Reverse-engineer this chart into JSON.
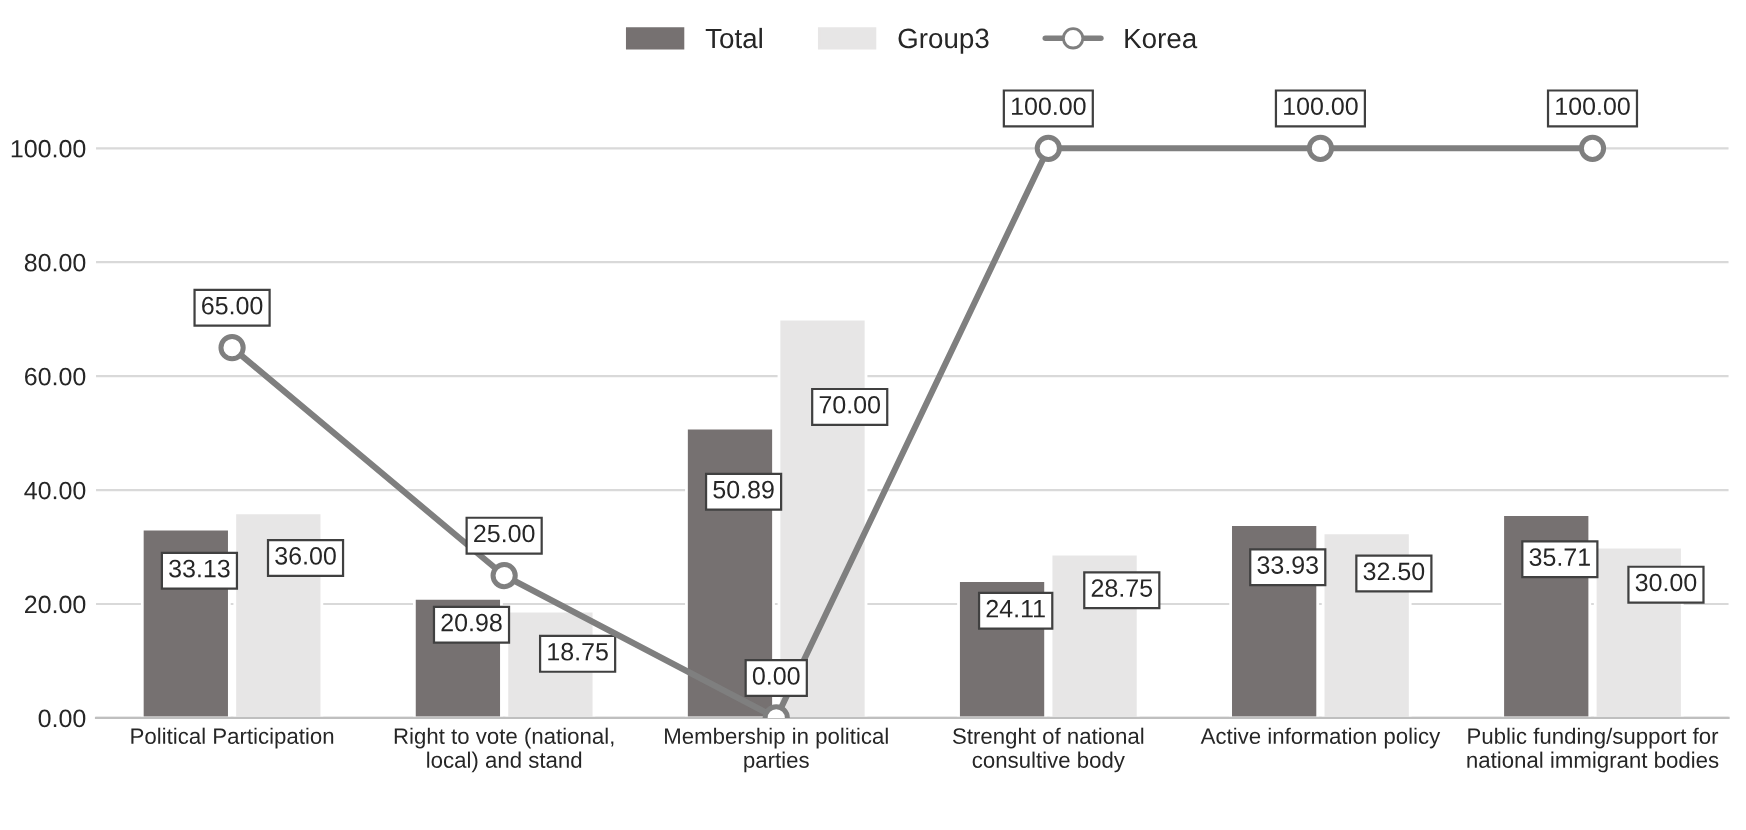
{
  "chart_data": {
    "type": "bar",
    "categories": [
      "Political Participation",
      "Right to vote (national,\nlocal) and stand",
      "Membership in political\nparties",
      "Strenght of national\nconsultive body",
      "Active information policy",
      "Public funding/support for\nnational immigrant bodies"
    ],
    "series": [
      {
        "name": "Total",
        "color": "#767171",
        "values": [
          33.13,
          20.98,
          50.89,
          24.11,
          33.93,
          35.71
        ],
        "value_labels": [
          "33.13",
          "20.98",
          "50.89",
          "24.11",
          "33.93",
          "35.71"
        ]
      },
      {
        "name": "Group3",
        "color": "#e7e6e6",
        "values": [
          36.0,
          18.75,
          70.0,
          28.75,
          32.5,
          30.0
        ],
        "value_labels": [
          "36.00",
          "18.75",
          "70.00",
          "28.75",
          "32.50",
          "30.00"
        ]
      },
      {
        "name": "Korea",
        "type": "line",
        "color": "#7f7f7f",
        "marker": "circle",
        "values": [
          65.0,
          25.0,
          0.0,
          100.0,
          100.0,
          100.0
        ],
        "value_labels": [
          "65.00",
          "25.00",
          "0.00",
          "100.00",
          "100.00",
          "100.00"
        ]
      }
    ],
    "ylim": [
      0,
      110
    ],
    "yticks": [
      {
        "value": 0,
        "label": "0.00"
      },
      {
        "value": 20,
        "label": "20.00"
      },
      {
        "value": 40,
        "label": "40.00"
      },
      {
        "value": 60,
        "label": "60.00"
      },
      {
        "value": 80,
        "label": "80.00"
      },
      {
        "value": 100,
        "label": "100.00"
      }
    ],
    "grid": "y",
    "legend": "top"
  }
}
